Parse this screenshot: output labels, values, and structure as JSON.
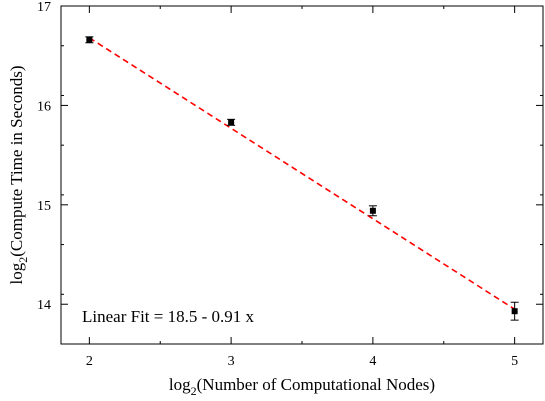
{
  "chart_data": {
    "type": "scatter",
    "xlabel": {
      "prefix": "log",
      "sub": "2",
      "rest": "(Number of Computational Nodes)"
    },
    "ylabel": {
      "prefix": "log",
      "sub": "2",
      "rest": "(Compute Time in Seconds)"
    },
    "xlim": [
      1.8,
      5.2
    ],
    "ylim": [
      13.6,
      17.0
    ],
    "xticks": [
      2,
      3,
      4,
      5
    ],
    "yticks": [
      14,
      15,
      16,
      17
    ],
    "grid": false,
    "series": [
      {
        "points": [
          {
            "x": 2,
            "y": 16.66,
            "err": 0.03
          },
          {
            "x": 3,
            "y": 15.83,
            "err": 0.03
          },
          {
            "x": 4,
            "y": 14.94,
            "err": 0.05
          },
          {
            "x": 5,
            "y": 13.93,
            "err": 0.09
          }
        ],
        "color": "#000000"
      }
    ],
    "fit": {
      "intercept": 18.5,
      "slope": -0.91,
      "x_range": [
        2,
        5
      ],
      "color": "#ff0000",
      "style": "dashed"
    },
    "annotation": "Linear Fit = 18.5 - 0.91 x"
  }
}
